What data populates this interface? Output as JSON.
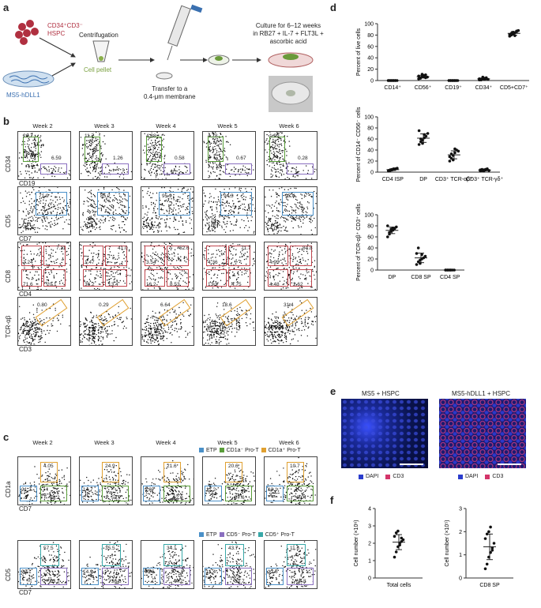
{
  "panels": {
    "a": "a",
    "b": "b",
    "c": "c",
    "d": "d",
    "e": "e",
    "f": "f"
  },
  "a": {
    "hspc_label_1": "CD34⁺CD3⁻",
    "hspc_label_2": "HSPC",
    "ms5_label": "MS5-hDLL1",
    "centrifugation": "Centrifugation",
    "pellet": "Cell pellet",
    "transfer_1": "Transfer to a",
    "transfer_2": "0.4-μm membrane",
    "culture_1": "Culture for 6–12 weeks",
    "culture_2": "in RB27 + IL-7 + FLT3L +",
    "culture_3": "ascorbic acid"
  },
  "weeks": [
    "Week 2",
    "Week 3",
    "Week 4",
    "Week 5",
    "Week 6"
  ],
  "b": {
    "row1": {
      "y": "CD34",
      "x": "CD19",
      "top": [
        "26.7",
        "11.7",
        "4.88",
        "4.78",
        "1.99"
      ],
      "bot": [
        "6.59",
        "1.26",
        "0.58",
        "0.67",
        "0.28"
      ]
    },
    "row2": {
      "y": "CD5",
      "x": "CD7",
      "vals": [
        "71.9",
        "85.2",
        "95.9",
        "94.3",
        "97.4"
      ]
    },
    "row3": {
      "y": "CD8",
      "x": "CD4",
      "tr": [
        "7.11",
        "41.0",
        "62.6",
        "71.7",
        "84.8"
      ],
      "tl": [
        "2.24",
        "1.47",
        "3.54",
        "4.36",
        "4.95"
      ],
      "bl": [
        "71.6",
        "36.2",
        "16.2",
        "13.1",
        "4.48"
      ],
      "br": [
        "20.1",
        "13.4",
        "8.53",
        "4.75",
        "2.62"
      ]
    },
    "row4": {
      "y": "TCR-αβ",
      "x": "CD3",
      "vals": [
        "0.80",
        "0.29",
        "6.64",
        "18.6",
        "31.4"
      ]
    }
  },
  "c": {
    "legend1": [
      "ETP",
      "CD1a⁻ Pro-T",
      "CD1a⁺ Pro-T"
    ],
    "legend2": [
      "ETP",
      "CD5⁻ Pro-T",
      "CD5⁺ Pro-T"
    ],
    "row1": {
      "y": "CD1a",
      "x": "CD7",
      "top": [
        "4.05",
        "24.9",
        "21.6",
        "20.6",
        "10.7"
      ],
      "left": [
        "21.2",
        "14.7",
        "9.07",
        "11.2",
        "12.1"
      ],
      "br": [
        "68.2",
        "53.7",
        "62.0",
        "57.6",
        "69.4"
      ]
    },
    "row2": {
      "y": "CD5",
      "x": "CD7",
      "top": [
        "57.5",
        "35.5",
        "34.1",
        "43.7",
        "11.6"
      ],
      "left": [
        "20.1",
        "14.9",
        "9.86",
        "11.4",
        "12.6"
      ],
      "br": [
        "13.2",
        "36.8",
        "44.2",
        "30.7",
        "64.8"
      ]
    }
  },
  "colors": {
    "green": "#5a9e3a",
    "purple": "#8a6fc0",
    "blue": "#4a90c8",
    "red": "#c0464e",
    "orange": "#e0a030",
    "teal": "#38a8a8",
    "dapi": "#2a3ccc",
    "cd3": "#d4356a"
  },
  "chart_data": [
    {
      "type": "scatter",
      "categories": [
        "CD14⁺",
        "CD56⁺",
        "CD19⁺",
        "CD34⁺",
        "CD5+CD7⁺"
      ],
      "ylabel": "Percent of live cells",
      "ylim": [
        0,
        100
      ],
      "yticks": [
        0,
        20,
        40,
        60,
        80,
        100
      ],
      "series": [
        {
          "values": [
            [
              0,
              0,
              0,
              0,
              0,
              0,
              0,
              0,
              0,
              0,
              0
            ],
            [
              3,
              5,
              7,
              9,
              10,
              6,
              8,
              4,
              11,
              7,
              5
            ],
            [
              0,
              0,
              0,
              0,
              0,
              0,
              0,
              0,
              0,
              0,
              0
            ],
            [
              1,
              2,
              3,
              4,
              5,
              2,
              3,
              1,
              6,
              2,
              4
            ],
            [
              78,
              80,
              82,
              84,
              86,
              88,
              81,
              83,
              85,
              79,
              87
            ]
          ]
        }
      ]
    },
    {
      "type": "scatter",
      "categories": [
        "CD4 ISP",
        "DP",
        "CD3⁺ TCR-αβ⁺",
        "CD3⁺ TCR-γδ⁺"
      ],
      "ylabel": "Percent of CD14⁻ CD56⁻ cells",
      "ylim": [
        0,
        100
      ],
      "yticks": [
        0,
        20,
        40,
        60,
        80,
        100
      ],
      "series": [
        {
          "values": [
            [
              2,
              3,
              4,
              5,
              6,
              7,
              3,
              4,
              5,
              6
            ],
            [
              50,
              55,
              58,
              62,
              65,
              70,
              75,
              60,
              52,
              68
            ],
            [
              20,
              25,
              30,
              35,
              40,
              38,
              28,
              33,
              22,
              42
            ],
            [
              2,
              3,
              4,
              5,
              6,
              3,
              4,
              5,
              2,
              4
            ]
          ]
        }
      ]
    },
    {
      "type": "scatter",
      "categories": [
        "DP",
        "CD8 SP",
        "CD4 SP"
      ],
      "ylabel": "Percent of TCR-αβ⁺ CD3⁺ cells",
      "ylim": [
        0,
        100
      ],
      "yticks": [
        0,
        20,
        40,
        60,
        80,
        100
      ],
      "series": [
        {
          "values": [
            [
              60,
              65,
              70,
              72,
              75,
              78,
              80,
              68,
              74,
              76
            ],
            [
              10,
              15,
              18,
              20,
              22,
              25,
              30,
              40,
              12,
              28
            ],
            [
              0,
              0,
              0,
              0,
              0,
              0,
              0,
              0,
              0,
              0
            ]
          ]
        }
      ]
    },
    {
      "type": "scatter",
      "categories": [
        "Total cells"
      ],
      "ylabel": "Cell number (×10⁶)",
      "ylim": [
        0,
        4
      ],
      "yticks": [
        0,
        1,
        2,
        3,
        4
      ],
      "series": [
        {
          "values": [
            [
              1.2,
              1.5,
              1.8,
              2.0,
              2.1,
              2.2,
              2.4,
              2.6,
              2.7,
              1.9,
              2.3
            ]
          ]
        }
      ]
    },
    {
      "type": "scatter",
      "categories": [
        "CD8 SP"
      ],
      "ylabel": "Cell number (×10⁵)",
      "ylim": [
        0,
        3
      ],
      "yticks": [
        0,
        1,
        2,
        3
      ],
      "series": [
        {
          "values": [
            [
              0.4,
              0.6,
              0.9,
              1.1,
              1.3,
              1.5,
              1.7,
              1.9,
              2.0,
              2.2,
              1.2
            ]
          ]
        }
      ]
    }
  ],
  "e": {
    "title_left": "MS5 + HSPC",
    "title_right": "MS5-hDLL1 + HSPC",
    "legend": [
      "DAPI",
      "CD3"
    ]
  }
}
